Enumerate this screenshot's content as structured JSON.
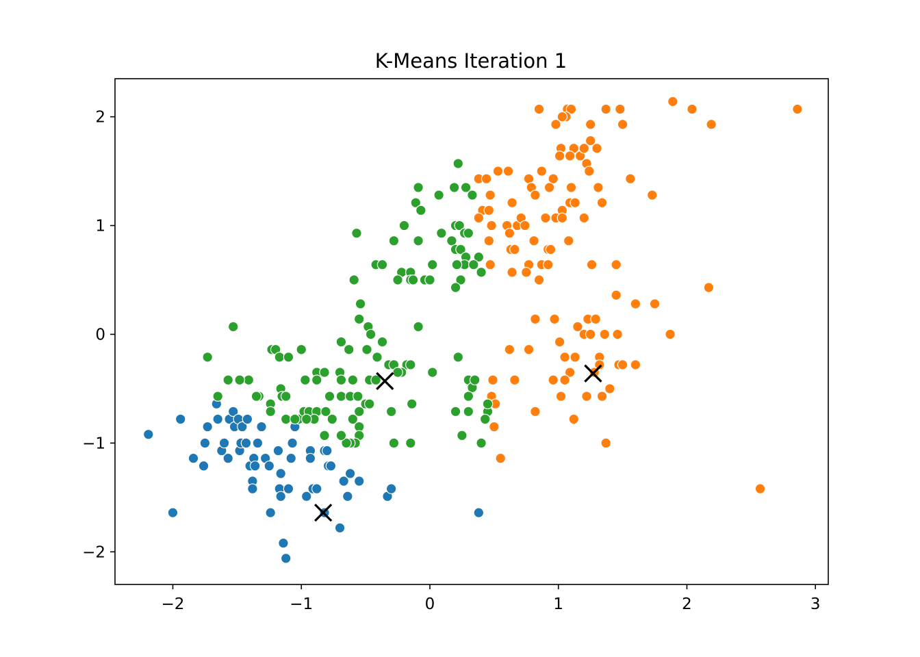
{
  "chart_data": {
    "type": "scatter",
    "title": "K-Means Iteration 1",
    "xlabel": "",
    "ylabel": "",
    "xlim": [
      -2.45,
      3.1
    ],
    "ylim": [
      -2.3,
      2.35
    ],
    "xticks": [
      -2,
      -1,
      0,
      1,
      2,
      3
    ],
    "yticks": [
      -2,
      -1,
      0,
      1,
      2
    ],
    "xtick_labels": [
      "−2",
      "−1",
      "0",
      "1",
      "2",
      "3"
    ],
    "ytick_labels": [
      "−2",
      "−1",
      "0",
      "1",
      "2"
    ],
    "grid": false,
    "legend": "none",
    "series": [
      {
        "color": "#1f77b4",
        "points": [
          [
            -2.19,
            -0.92
          ],
          [
            -1.94,
            -0.78
          ],
          [
            -2.0,
            -1.64
          ],
          [
            -1.84,
            -1.14
          ],
          [
            -1.76,
            -1.21
          ],
          [
            -1.75,
            -1.0
          ],
          [
            -1.73,
            -0.85
          ],
          [
            -1.66,
            -0.64
          ],
          [
            -1.65,
            -0.78
          ],
          [
            -1.62,
            -1.07
          ],
          [
            -1.6,
            -1.0
          ],
          [
            -1.57,
            -1.14
          ],
          [
            -1.56,
            -0.78
          ],
          [
            -1.53,
            -0.71
          ],
          [
            -1.52,
            -0.85
          ],
          [
            -1.49,
            -0.78
          ],
          [
            -1.48,
            -1.07
          ],
          [
            -1.47,
            -1.0
          ],
          [
            -1.46,
            -0.85
          ],
          [
            -1.43,
            -1.0
          ],
          [
            -1.42,
            -0.78
          ],
          [
            -1.4,
            -1.21
          ],
          [
            -1.38,
            -1.35
          ],
          [
            -1.38,
            -1.42
          ],
          [
            -1.37,
            -1.14
          ],
          [
            -1.36,
            -1.21
          ],
          [
            -1.34,
            -1.0
          ],
          [
            -1.31,
            -0.85
          ],
          [
            -1.28,
            -1.14
          ],
          [
            -1.25,
            -1.21
          ],
          [
            -1.24,
            -1.64
          ],
          [
            -1.18,
            -1.07
          ],
          [
            -1.17,
            -1.42
          ],
          [
            -1.16,
            -1.28
          ],
          [
            -1.16,
            -1.49
          ],
          [
            -1.14,
            -1.92
          ],
          [
            -1.12,
            -2.06
          ],
          [
            -1.1,
            -1.42
          ],
          [
            -1.08,
            -1.14
          ],
          [
            -1.07,
            -1.0
          ],
          [
            -1.05,
            -0.85
          ],
          [
            -0.96,
            -1.49
          ],
          [
            -0.93,
            -1.07
          ],
          [
            -0.93,
            -1.14
          ],
          [
            -0.91,
            -1.42
          ],
          [
            -0.88,
            -1.42
          ],
          [
            -0.82,
            -1.64
          ],
          [
            -0.82,
            -1.07
          ],
          [
            -0.8,
            -1.07
          ],
          [
            -0.79,
            -1.21
          ],
          [
            -0.77,
            -1.21
          ],
          [
            -0.7,
            -1.78
          ],
          [
            -0.67,
            -1.35
          ],
          [
            -0.64,
            -1.49
          ],
          [
            -0.62,
            -1.28
          ],
          [
            -0.55,
            -1.35
          ],
          [
            -0.33,
            -1.49
          ],
          [
            -0.3,
            -1.42
          ],
          [
            0.38,
            -1.64
          ]
        ]
      },
      {
        "color": "#ff7f0e",
        "points": [
          [
            0.85,
            2.07
          ],
          [
            1.07,
            2.07
          ],
          [
            1.1,
            2.07
          ],
          [
            1.37,
            2.07
          ],
          [
            1.48,
            2.07
          ],
          [
            1.89,
            2.14
          ],
          [
            2.04,
            2.07
          ],
          [
            2.86,
            2.07
          ],
          [
            0.98,
            1.93
          ],
          [
            1.06,
            2.0
          ],
          [
            1.03,
            2.0
          ],
          [
            1.25,
            1.93
          ],
          [
            1.5,
            1.93
          ],
          [
            2.19,
            1.93
          ],
          [
            1.25,
            1.78
          ],
          [
            1.02,
            1.71
          ],
          [
            1.12,
            1.71
          ],
          [
            1.17,
            1.64
          ],
          [
            1.2,
            1.71
          ],
          [
            1.3,
            1.71
          ],
          [
            1.01,
            1.64
          ],
          [
            1.09,
            1.64
          ],
          [
            1.22,
            1.57
          ],
          [
            0.38,
            1.43
          ],
          [
            0.44,
            1.43
          ],
          [
            0.53,
            1.5
          ],
          [
            0.61,
            1.5
          ],
          [
            0.77,
            1.43
          ],
          [
            0.87,
            1.5
          ],
          [
            0.96,
            1.43
          ],
          [
            1.24,
            1.5
          ],
          [
            1.56,
            1.43
          ],
          [
            0.79,
            1.35
          ],
          [
            0.93,
            1.35
          ],
          [
            1.1,
            1.35
          ],
          [
            1.31,
            1.35
          ],
          [
            0.82,
            1.28
          ],
          [
            0.47,
            1.28
          ],
          [
            0.64,
            1.21
          ],
          [
            1.09,
            1.21
          ],
          [
            1.13,
            1.21
          ],
          [
            1.34,
            1.21
          ],
          [
            1.73,
            1.28
          ],
          [
            0.41,
            1.14
          ],
          [
            0.46,
            1.14
          ],
          [
            1.03,
            1.14
          ],
          [
            0.38,
            1.07
          ],
          [
            0.9,
            1.07
          ],
          [
            0.98,
            1.07
          ],
          [
            1.03,
            1.07
          ],
          [
            1.2,
            1.07
          ],
          [
            0.48,
            1.0
          ],
          [
            0.6,
            1.0
          ],
          [
            0.68,
            1.0
          ],
          [
            0.71,
            1.07
          ],
          [
            0.74,
            1.0
          ],
          [
            0.62,
            0.93
          ],
          [
            0.46,
            0.86
          ],
          [
            0.63,
            0.78
          ],
          [
            0.66,
            0.78
          ],
          [
            0.81,
            0.86
          ],
          [
            0.92,
            0.78
          ],
          [
            0.94,
            0.78
          ],
          [
            1.08,
            0.86
          ],
          [
            0.47,
            0.64
          ],
          [
            0.77,
            0.64
          ],
          [
            0.87,
            0.64
          ],
          [
            0.92,
            0.64
          ],
          [
            1.26,
            0.64
          ],
          [
            1.45,
            0.64
          ],
          [
            0.64,
            0.57
          ],
          [
            0.75,
            0.57
          ],
          [
            0.85,
            0.5
          ],
          [
            1.45,
            0.36
          ],
          [
            1.6,
            0.28
          ],
          [
            1.75,
            0.28
          ],
          [
            2.17,
            0.43
          ],
          [
            0.82,
            0.14
          ],
          [
            0.97,
            0.14
          ],
          [
            1.23,
            0.14
          ],
          [
            1.29,
            0.14
          ],
          [
            1.15,
            0.07
          ],
          [
            1.2,
            0.0
          ],
          [
            1.25,
            0.0
          ],
          [
            1.36,
            0.0
          ],
          [
            1.46,
            0.0
          ],
          [
            1.87,
            0.0
          ],
          [
            0.77,
            -0.14
          ],
          [
            0.62,
            -0.14
          ],
          [
            1.01,
            -0.07
          ],
          [
            1.05,
            -0.21
          ],
          [
            1.13,
            -0.21
          ],
          [
            1.32,
            -0.21
          ],
          [
            1.47,
            -0.28
          ],
          [
            1.5,
            -0.28
          ],
          [
            1.6,
            -0.28
          ],
          [
            1.32,
            -0.28
          ],
          [
            1.09,
            -0.35
          ],
          [
            1.28,
            -0.35
          ],
          [
            1.05,
            -0.42
          ],
          [
            0.96,
            -0.42
          ],
          [
            0.66,
            -0.42
          ],
          [
            0.49,
            -0.42
          ],
          [
            1.22,
            -0.57
          ],
          [
            1.4,
            -0.5
          ],
          [
            0.48,
            -0.57
          ],
          [
            1.02,
            -0.57
          ],
          [
            1.34,
            -0.57
          ],
          [
            0.51,
            -0.64
          ],
          [
            0.82,
            -0.71
          ],
          [
            1.12,
            -0.78
          ],
          [
            0.5,
            -0.85
          ],
          [
            1.37,
            -1.0
          ],
          [
            0.55,
            -1.14
          ],
          [
            2.57,
            -1.42
          ]
        ]
      },
      {
        "color": "#2ca02c",
        "points": [
          [
            0.22,
            1.57
          ],
          [
            0.19,
            1.35
          ],
          [
            0.28,
            1.35
          ],
          [
            -0.09,
            1.35
          ],
          [
            -0.11,
            1.21
          ],
          [
            -0.07,
            1.14
          ],
          [
            0.07,
            1.28
          ],
          [
            0.33,
            1.28
          ],
          [
            -0.2,
            1.0
          ],
          [
            0.2,
            1.0
          ],
          [
            0.23,
            1.0
          ],
          [
            0.09,
            0.93
          ],
          [
            0.27,
            0.93
          ],
          [
            0.3,
            0.93
          ],
          [
            -0.57,
            0.93
          ],
          [
            -0.28,
            0.86
          ],
          [
            -0.09,
            0.86
          ],
          [
            0.17,
            0.86
          ],
          [
            0.2,
            0.78
          ],
          [
            0.24,
            0.78
          ],
          [
            0.28,
            0.71
          ],
          [
            0.38,
            0.71
          ],
          [
            0.02,
            0.64
          ],
          [
            -0.42,
            0.64
          ],
          [
            -0.37,
            0.64
          ],
          [
            0.27,
            0.64
          ],
          [
            0.34,
            0.64
          ],
          [
            0.21,
            0.64
          ],
          [
            -0.22,
            0.57
          ],
          [
            -0.15,
            0.57
          ],
          [
            0.4,
            0.57
          ],
          [
            -0.25,
            0.5
          ],
          [
            -0.15,
            0.5
          ],
          [
            -0.13,
            0.5
          ],
          [
            -0.04,
            0.5
          ],
          [
            0.0,
            0.5
          ],
          [
            -0.59,
            0.5
          ],
          [
            0.24,
            0.5
          ],
          [
            0.2,
            0.43
          ],
          [
            -0.54,
            0.28
          ],
          [
            -0.55,
            0.14
          ],
          [
            -0.48,
            0.07
          ],
          [
            -0.46,
            0.0
          ],
          [
            -1.53,
            0.07
          ],
          [
            -0.09,
            0.07
          ],
          [
            -0.69,
            -0.07
          ],
          [
            -0.37,
            -0.07
          ],
          [
            -0.49,
            -0.14
          ],
          [
            -0.63,
            -0.14
          ],
          [
            -1.23,
            -0.14
          ],
          [
            -1.2,
            -0.14
          ],
          [
            -1.17,
            -0.21
          ],
          [
            -1.1,
            -0.21
          ],
          [
            -1.0,
            -0.14
          ],
          [
            -1.73,
            -0.21
          ],
          [
            -0.41,
            -0.21
          ],
          [
            -0.32,
            -0.28
          ],
          [
            -0.28,
            -0.28
          ],
          [
            -0.18,
            -0.28
          ],
          [
            -0.15,
            -0.28
          ],
          [
            -0.22,
            -0.35
          ],
          [
            -0.25,
            -0.35
          ],
          [
            0.02,
            -0.35
          ],
          [
            -0.88,
            -0.35
          ],
          [
            -0.82,
            -0.35
          ],
          [
            -0.7,
            -0.35
          ],
          [
            -0.6,
            -0.42
          ],
          [
            -0.47,
            -0.42
          ],
          [
            -0.42,
            -0.42
          ],
          [
            -0.69,
            -0.42
          ],
          [
            -0.88,
            -0.42
          ],
          [
            -0.97,
            -0.42
          ],
          [
            -1.41,
            -0.42
          ],
          [
            -1.48,
            -0.42
          ],
          [
            -1.57,
            -0.42
          ],
          [
            -1.16,
            -0.5
          ],
          [
            -1.15,
            -0.57
          ],
          [
            -1.12,
            -0.57
          ],
          [
            -1.33,
            -0.57
          ],
          [
            -1.35,
            -0.57
          ],
          [
            -1.65,
            -0.57
          ],
          [
            -0.78,
            -0.57
          ],
          [
            -0.69,
            -0.57
          ],
          [
            -0.62,
            -0.57
          ],
          [
            -0.56,
            -0.57
          ],
          [
            -0.5,
            -0.64
          ],
          [
            -0.47,
            -0.64
          ],
          [
            -1.24,
            -0.64
          ],
          [
            -1.24,
            -0.71
          ],
          [
            -1.12,
            -0.78
          ],
          [
            -1.02,
            -0.78
          ],
          [
            -0.98,
            -0.71
          ],
          [
            -0.94,
            -0.71
          ],
          [
            -0.88,
            -0.71
          ],
          [
            -0.81,
            -0.71
          ],
          [
            -0.76,
            -0.78
          ],
          [
            -0.9,
            -0.78
          ],
          [
            -0.96,
            -0.78
          ],
          [
            -1.05,
            -0.78
          ],
          [
            -0.55,
            -0.71
          ],
          [
            -0.6,
            -0.78
          ],
          [
            -0.55,
            -0.85
          ],
          [
            -0.55,
            -0.93
          ],
          [
            -0.58,
            -1.0
          ],
          [
            -0.62,
            -1.0
          ],
          [
            -0.65,
            -1.0
          ],
          [
            -0.69,
            -0.93
          ],
          [
            -0.82,
            -0.93
          ],
          [
            -0.3,
            -0.71
          ],
          [
            -0.28,
            -1.0
          ],
          [
            -0.15,
            -1.0
          ],
          [
            -0.14,
            -0.64
          ],
          [
            0.22,
            -0.21
          ],
          [
            0.3,
            -0.42
          ],
          [
            0.33,
            -0.49
          ],
          [
            0.35,
            -0.42
          ],
          [
            0.3,
            -0.57
          ],
          [
            0.2,
            -0.71
          ],
          [
            0.3,
            -0.71
          ],
          [
            0.25,
            -0.93
          ],
          [
            0.4,
            -1.0
          ],
          [
            0.45,
            -0.71
          ],
          [
            0.45,
            -0.64
          ],
          [
            0.43,
            -0.78
          ]
        ]
      }
    ],
    "centroids": {
      "marker": "x",
      "color": "#000000",
      "points": [
        [
          -0.83,
          -1.64
        ],
        [
          1.27,
          -0.36
        ],
        [
          -0.35,
          -0.43
        ]
      ]
    }
  }
}
